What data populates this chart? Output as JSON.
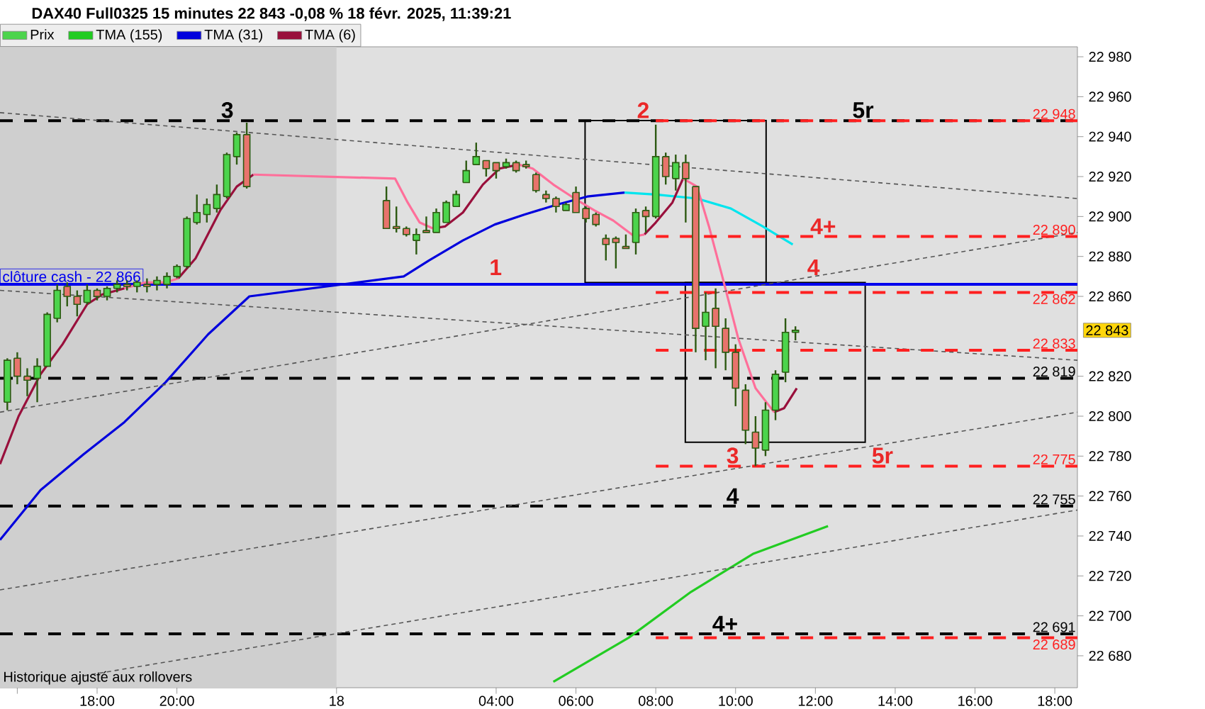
{
  "chart_data": {
    "type": "candlestick",
    "title": "DAX40 Full0325 15 minutes 22 843 -0,08 % 18 févr. 2025, 11:39:21",
    "xlim": [
      "2025-02-17T15:34",
      "2025-02-18T18:34"
    ],
    "ylim": [
      22664,
      22985
    ],
    "xticks": [
      {
        "value": "2025-02-17T16:00",
        "label": null
      },
      {
        "value": "2025-02-17T18:00",
        "label": "18:00"
      },
      {
        "value": "2025-02-17T20:00",
        "label": "20:00"
      },
      {
        "value": "2025-02-18",
        "label": "18"
      },
      {
        "value": "2025-02-18T04:00",
        "label": "04:00"
      },
      {
        "value": "2025-02-18T06:00",
        "label": "06:00"
      },
      {
        "value": "2025-02-18T08:00",
        "label": "08:00"
      },
      {
        "value": "2025-02-18T10:00",
        "label": "10:00"
      },
      {
        "value": "2025-02-18T12:00",
        "label": "12:00"
      },
      {
        "value": "2025-02-18T14:00",
        "label": "14:00"
      },
      {
        "value": "2025-02-18T16:00",
        "label": "16:00"
      },
      {
        "value": "2025-02-18T18:00",
        "label": "18:00"
      }
    ],
    "yticks": [
      {
        "value": 22680,
        "label": "22 680"
      },
      {
        "value": 22700,
        "label": "22 700"
      },
      {
        "value": 22720,
        "label": "22 720"
      },
      {
        "value": 22740,
        "label": "22 740"
      },
      {
        "value": 22760,
        "label": "22 760"
      },
      {
        "value": 22780,
        "label": "22 780"
      },
      {
        "value": 22800,
        "label": "22 800"
      },
      {
        "value": 22820,
        "label": "22 820"
      },
      {
        "value": 22860,
        "label": "22 860"
      },
      {
        "value": 22880,
        "label": "22 880"
      },
      {
        "value": 22900,
        "label": "22 900"
      },
      {
        "value": 22920,
        "label": "22 920"
      },
      {
        "value": 22940,
        "label": "22 940"
      },
      {
        "value": 22960,
        "label": "22 960"
      },
      {
        "value": 22980,
        "label": "22 980"
      }
    ],
    "legend": "top left",
    "bands": [
      {
        "axis": "x",
        "from": "2025-02-17T15:34",
        "to": "2025-02-18",
        "color": "#cfcfcf"
      }
    ],
    "ref_lines": [
      {
        "axis": "y",
        "value": 22948,
        "color": "#000000",
        "line_style": "dashed"
      },
      {
        "axis": "y",
        "value": 22819,
        "label": "22 819",
        "color": "#000000",
        "line_style": "dashed"
      },
      {
        "axis": "y",
        "value": 22755,
        "label": "22 755",
        "color": "#000000",
        "line_style": "dashed"
      },
      {
        "axis": "y",
        "value": 22691,
        "label": "22 691",
        "color": "#000000",
        "line_style": "dashed"
      },
      {
        "axis": "y",
        "value": 22866,
        "label": "clôture cash -  22 866",
        "color": "#0000ee",
        "line_style": "solid"
      }
    ],
    "annotations": [
      "3",
      "2",
      "5r",
      "4+",
      "4",
      "1",
      "3",
      "5r",
      "4",
      "4+",
      "Historique ajusté aux rollovers",
      "22 843"
    ],
    "series": [
      {
        "type": "candlestick",
        "name": "Prix",
        "x": [
          "2025-02-17T15:45",
          "2025-02-17T16:00",
          "2025-02-17T16:15",
          "2025-02-17T16:30",
          "2025-02-17T16:45",
          "2025-02-17T17:00",
          "2025-02-17T17:15",
          "2025-02-17T17:30",
          "2025-02-17T17:45",
          "2025-02-17T18:00",
          "2025-02-17T18:15",
          "2025-02-17T18:30",
          "2025-02-17T18:45",
          "2025-02-17T19:00",
          "2025-02-17T19:15",
          "2025-02-17T19:30",
          "2025-02-17T19:45",
          "2025-02-17T20:00",
          "2025-02-17T20:15",
          "2025-02-17T20:30",
          "2025-02-17T20:45",
          "2025-02-17T21:00",
          "2025-02-17T21:15",
          "2025-02-17T21:30",
          "2025-02-17T21:45",
          "2025-02-18T01:15",
          "2025-02-18T01:30",
          "2025-02-18T01:45",
          "2025-02-18T02:00",
          "2025-02-18T02:15",
          "2025-02-18T02:30",
          "2025-02-18T02:45",
          "2025-02-18T03:00",
          "2025-02-18T03:15",
          "2025-02-18T03:30",
          "2025-02-18T03:45",
          "2025-02-18T04:00",
          "2025-02-18T04:15",
          "2025-02-18T04:30",
          "2025-02-18T04:45",
          "2025-02-18T05:00",
          "2025-02-18T05:15",
          "2025-02-18T05:30",
          "2025-02-18T05:45",
          "2025-02-18T06:00",
          "2025-02-18T06:15",
          "2025-02-18T06:30",
          "2025-02-18T06:45",
          "2025-02-18T07:00",
          "2025-02-18T07:15",
          "2025-02-18T07:30",
          "2025-02-18T07:45",
          "2025-02-18T08:00",
          "2025-02-18T08:15",
          "2025-02-18T08:30",
          "2025-02-18T08:45",
          "2025-02-18T09:00",
          "2025-02-18T09:15",
          "2025-02-18T09:30",
          "2025-02-18T09:45",
          "2025-02-18T10:00",
          "2025-02-18T10:15",
          "2025-02-18T10:30",
          "2025-02-18T10:45",
          "2025-02-18T11:00",
          "2025-02-18T11:15",
          "2025-02-18T11:30"
        ],
        "ohlc": [
          [
            22807,
            22829,
            22803,
            22828
          ],
          [
            22829,
            22832,
            22816,
            22820
          ],
          [
            22820,
            22824,
            22810,
            22818
          ],
          [
            22819,
            22829,
            22807,
            22825
          ],
          [
            22825,
            22852,
            22825,
            22851
          ],
          [
            22849,
            22866,
            22847,
            22863
          ],
          [
            22865,
            22867,
            22855,
            22860
          ],
          [
            22860,
            22863,
            22850,
            22856
          ],
          [
            22857,
            22866,
            22856,
            22863
          ],
          [
            22863,
            22864,
            22858,
            22860
          ],
          [
            22860,
            22865,
            22858,
            22864
          ],
          [
            22864,
            22868,
            22862,
            22866
          ],
          [
            22866,
            22868,
            22863,
            22865
          ],
          [
            22865,
            22868,
            22862,
            22867
          ],
          [
            22866,
            22869,
            22862,
            22865
          ],
          [
            22866,
            22870,
            22863,
            22868
          ],
          [
            22866,
            22872,
            22864,
            22870
          ],
          [
            22870,
            22876,
            22869,
            22875
          ],
          [
            22875,
            22900,
            22874,
            22899
          ],
          [
            22897,
            22911,
            22896,
            22902
          ],
          [
            22901,
            22909,
            22897,
            22906
          ],
          [
            22904,
            22916,
            22902,
            22911
          ],
          [
            22910,
            22932,
            22909,
            22931
          ],
          [
            22930,
            22942,
            22926,
            22941
          ],
          [
            22941,
            22947,
            22914,
            22915
          ],
          [
            22908,
            22915,
            22894,
            22894
          ],
          [
            22895,
            22905,
            22892,
            22894
          ],
          [
            22894,
            22895,
            22890,
            22891
          ],
          [
            22888,
            22894,
            22881,
            22891
          ],
          [
            22893,
            22900,
            22892,
            22892
          ],
          [
            22892,
            22904,
            22892,
            22902
          ],
          [
            22897,
            22908,
            22897,
            22907
          ],
          [
            22905,
            22913,
            22905,
            22911
          ],
          [
            22917,
            22928,
            22917,
            22923
          ],
          [
            22926,
            22937,
            22926,
            22930
          ],
          [
            22928,
            22928,
            22920,
            22924
          ],
          [
            22927,
            22927,
            22919,
            22923
          ],
          [
            22925,
            22929,
            22924,
            22927
          ],
          [
            22927,
            22928,
            22922,
            22923
          ],
          [
            22926,
            22928,
            22924,
            22925
          ],
          [
            22921,
            22922,
            22912,
            22913
          ],
          [
            22911,
            22913,
            22907,
            22909
          ],
          [
            22909,
            22910,
            22902,
            22905
          ],
          [
            22903,
            22907,
            22903,
            22906
          ],
          [
            22912,
            22915,
            22902,
            22902
          ],
          [
            22904,
            22905,
            22897,
            22899
          ],
          [
            22901,
            22902,
            22895,
            22896
          ],
          [
            22889,
            22891,
            22878,
            22886
          ],
          [
            22889,
            22890,
            22874,
            22887
          ],
          [
            22885,
            22891,
            22884,
            22884
          ],
          [
            22887,
            22904,
            22881,
            22902
          ],
          [
            22903,
            22905,
            22892,
            22900
          ],
          [
            22900,
            22946,
            22899,
            22930
          ],
          [
            22930,
            22932,
            22916,
            22920
          ],
          [
            22919,
            22931,
            22913,
            22927
          ],
          [
            22927,
            22931,
            22897,
            22919
          ],
          [
            22915,
            22915,
            22832,
            22844
          ],
          [
            22845,
            22862,
            22828,
            22852
          ],
          [
            22854,
            22864,
            22824,
            22845
          ],
          [
            22844,
            22849,
            22823,
            22832
          ],
          [
            22832,
            22836,
            22805,
            22814
          ],
          [
            22813,
            22816,
            22786,
            22793
          ],
          [
            22792,
            22800,
            22775,
            22784
          ],
          [
            22783,
            22807,
            22780,
            22803
          ],
          [
            22803,
            22823,
            22798,
            22821
          ],
          [
            22822,
            22849,
            22817,
            22842
          ],
          [
            22842,
            22845,
            22838,
            22843
          ]
        ],
        "colors": [
          "#4cd44c",
          "#e8736c",
          "#e8736c",
          "#4cd44c",
          "#4cd44c",
          "#4cd44c",
          "#e8736c",
          "#e8736c",
          "#4cd44c",
          "#e8736c",
          "#4cd44c",
          "#4cd44c",
          "#e8736c",
          "#4cd44c",
          "#e8736c",
          "#4cd44c",
          "#4cd44c",
          "#4cd44c",
          "#4cd44c",
          "#4cd44c",
          "#4cd44c",
          "#4cd44c",
          "#4cd44c",
          "#4cd44c",
          "#e8736c",
          "#e8736c",
          "#e8736c",
          "#e8736c",
          "#4cd44c",
          "#e8736c",
          "#4cd44c",
          "#4cd44c",
          "#4cd44c",
          "#4cd44c",
          "#4cd44c",
          "#e8736c",
          "#e8736c",
          "#4cd44c",
          "#e8736c",
          "#e8736c",
          "#e8736c",
          "#e8736c",
          "#e8736c",
          "#4cd44c",
          "#e8736c",
          "#e8736c",
          "#e8736c",
          "#e8736c",
          "#e8736c",
          "#e8736c",
          "#4cd44c",
          "#e8736c",
          "#4cd44c",
          "#e8736c",
          "#4cd44c",
          "#e8736c",
          "#e8736c",
          "#4cd44c",
          "#e8736c",
          "#e8736c",
          "#e8736c",
          "#e8736c",
          "#e8736c",
          "#4cd44c",
          "#4cd44c",
          "#4cd44c",
          "#4cd44c"
        ]
      },
      {
        "type": "line",
        "name": "TMA (155)",
        "color": "#22cc22",
        "x": [
          "2025-02-18T05:26",
          "2025-02-18T07:19",
          "2025-02-18T08:53",
          "2025-02-18T10:26",
          "2025-02-18T12:19"
        ],
        "values": [
          22667,
          22689,
          22712,
          22731,
          22745
        ]
      },
      {
        "type": "line",
        "name": "TMA (31)",
        "color": "#0000dd",
        "x": [
          "2025-02-17T15:34",
          "2025-02-17T16:35",
          "2025-02-17T17:40",
          "2025-02-17T18:41",
          "2025-02-17T19:43",
          "2025-02-17T20:47",
          "2025-02-17T21:49",
          "2025-02-18T01:41",
          "2025-02-18T02:19",
          "2025-02-18T03:10",
          "2025-02-18T03:58",
          "2025-02-18T04:43",
          "2025-02-18T05:32",
          "2025-02-18T06:17",
          "2025-02-18T07:13"
        ],
        "values": [
          22738,
          22763,
          22781,
          22797,
          22817,
          22841,
          22860,
          22870,
          22878,
          22888,
          22896,
          22901,
          22906,
          22910,
          22912
        ]
      },
      {
        "type": "line",
        "color": "#00e5ee",
        "x": [
          "2025-02-18T07:13",
          "2025-02-18T08:00",
          "2025-02-18T09:02",
          "2025-02-18T09:53",
          "2025-02-18T10:41",
          "2025-02-18T11:26"
        ],
        "values": [
          22912,
          22911,
          22909,
          22904,
          22895,
          22886
        ]
      },
      {
        "type": "line",
        "name": "TMA (6)",
        "color": "#99103c",
        "x": [
          "2025-02-17T15:34",
          "2025-02-17T16:02",
          "2025-02-17T16:35",
          "2025-02-17T17:08",
          "2025-02-17T17:45",
          "2025-02-17T18:08",
          "2025-02-17T18:41",
          "2025-02-17T19:00",
          "2025-02-17T20:02",
          "2025-02-17T20:28",
          "2025-02-17T21:05",
          "2025-02-17T21:30",
          "2025-02-17T21:55",
          "2025-02-18T01:30",
          "2025-02-18T02:25",
          "2025-02-18T02:43",
          "2025-02-18T03:10",
          "2025-02-18T03:40",
          "2025-02-18T04:05",
          "2025-02-18T04:34",
          "2025-02-18T05:15",
          "2025-02-18T07:43",
          "2025-02-18T08:00",
          "2025-02-18T08:25",
          "2025-02-18T08:41",
          "2025-02-18T09:15",
          "2025-02-18T10:58",
          "2025-02-18T11:13",
          "2025-02-18T11:32"
        ],
        "values": [
          22776,
          22800,
          22821,
          22836,
          22856,
          22861,
          22864,
          null,
          22869,
          22879,
          22903,
          22915,
          22921,
          null,
          22894,
          22895,
          22902,
          22916,
          22924,
          22926,
          null,
          22891,
          22897,
          22907,
          22919,
          null,
          22802,
          22804,
          22814
        ]
      },
      {
        "type": "line",
        "color": "#ff6f9a",
        "x": [
          "2025-02-17T18:41",
          "2025-02-17T19:13",
          "2025-02-17T19:43",
          "2025-02-17T20:02",
          "2025-02-17T21:00",
          "2025-02-17T21:55",
          "2025-02-18T01:28",
          "2025-02-18T01:47",
          "2025-02-18T02:05",
          "2025-02-18T02:25",
          "2025-02-18T03:15",
          "2025-02-18T04:34",
          "2025-02-18T04:55",
          "2025-02-18T05:26",
          "2025-02-18T05:58",
          "2025-02-18T06:28",
          "2025-02-18T06:56",
          "2025-02-18T07:28",
          "2025-02-18T07:43",
          "2025-02-18T08:15",
          "2025-02-18T08:41",
          "2025-02-18T09:02",
          "2025-02-18T09:20",
          "2025-02-18T09:40",
          "2025-02-18T10:04",
          "2025-02-18T10:30",
          "2025-02-18T10:58"
        ],
        "values": [
          22864,
          22867,
          22867,
          22869,
          null,
          22921,
          22919,
          22907,
          22897,
          22894,
          null,
          22926,
          22924,
          22916,
          22909,
          22903,
          22898,
          22890,
          22891,
          null,
          22919,
          22915,
          22895,
          22870,
          22839,
          22814,
          22802
        ]
      },
      {
        "type": "line",
        "color": "#555555",
        "line_style": "dashed",
        "x": [
          "2025-02-17T15:34",
          "2025-02-18T18:34"
        ],
        "values": [
          22952,
          22909
        ]
      },
      {
        "type": "line",
        "color": "#555555",
        "line_style": "dashed",
        "x": [
          "2025-02-17T15:34",
          "2025-02-18T18:34"
        ],
        "values": [
          22863,
          22828
        ]
      },
      {
        "type": "line",
        "color": "#555555",
        "line_style": "dashed",
        "x": [
          "2025-02-17T15:34",
          "2025-02-18T18:34"
        ],
        "values": [
          22802,
          22892
        ]
      },
      {
        "type": "line",
        "color": "#555555",
        "line_style": "dashed",
        "x": [
          "2025-02-17T15:34",
          "2025-02-18T18:34"
        ],
        "values": [
          22713,
          22802
        ]
      },
      {
        "type": "line",
        "color": "#555555",
        "line_style": "dashed",
        "x": [
          "2025-02-17T17:40",
          "2025-02-18T18:34"
        ],
        "values": [
          22670,
          22753
        ]
      },
      {
        "type": "line",
        "name": "22 948",
        "color": "#ff2020",
        "line_style": "dashed",
        "x": [
          "2025-02-18T08:00",
          "2025-02-18T18:34"
        ],
        "values": [
          22948,
          22948
        ]
      },
      {
        "type": "line",
        "name": "22 890",
        "color": "#ff2020",
        "line_style": "dashed",
        "x": [
          "2025-02-18T08:00",
          "2025-02-18T18:34"
        ],
        "values": [
          22890,
          22890
        ]
      },
      {
        "type": "line",
        "name": "22 862",
        "color": "#ff2020",
        "line_style": "dashed",
        "x": [
          "2025-02-18T08:00",
          "2025-02-18T18:34"
        ],
        "values": [
          22862,
          22862
        ]
      },
      {
        "type": "line",
        "name": "22 833",
        "color": "#ff2020",
        "line_style": "dashed",
        "x": [
          "2025-02-18T08:00",
          "2025-02-18T18:34"
        ],
        "values": [
          22833,
          22833
        ]
      },
      {
        "type": "line",
        "name": "22 775",
        "color": "#ff2020",
        "line_style": "dashed",
        "x": [
          "2025-02-18T08:00",
          "2025-02-18T18:34"
        ],
        "values": [
          22775,
          22775
        ]
      },
      {
        "type": "line",
        "name": "22 689",
        "color": "#ff2020",
        "line_style": "dashed",
        "x": [
          "2025-02-18T08:00",
          "2025-02-18T18:34"
        ],
        "values": [
          22689,
          22689
        ]
      }
    ]
  }
}
